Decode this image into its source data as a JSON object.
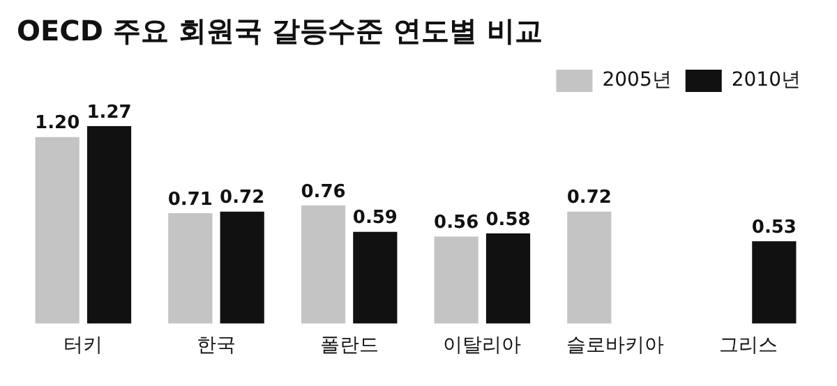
{
  "chart_data": {
    "type": "bar",
    "title": "OECD 주요 회원국 갈등수준 연도별 비교",
    "categories": [
      "터키",
      "한국",
      "폴란드",
      "이탈리아",
      "슬로바키아",
      "그리스"
    ],
    "series": [
      {
        "name": "2005년",
        "color": "#c4c4c4",
        "values": [
          1.2,
          0.71,
          0.76,
          0.56,
          0.72,
          null
        ],
        "value_labels": [
          "1.20",
          "0.71",
          "0.76",
          "0.56",
          "0.72",
          null
        ]
      },
      {
        "name": "2010년",
        "color": "#111111",
        "values": [
          1.27,
          0.72,
          0.59,
          0.58,
          null,
          0.53
        ],
        "value_labels": [
          "1.27",
          "0.72",
          "0.59",
          "0.58",
          null,
          "0.53"
        ]
      }
    ],
    "legend": "top right",
    "grid": false
  }
}
